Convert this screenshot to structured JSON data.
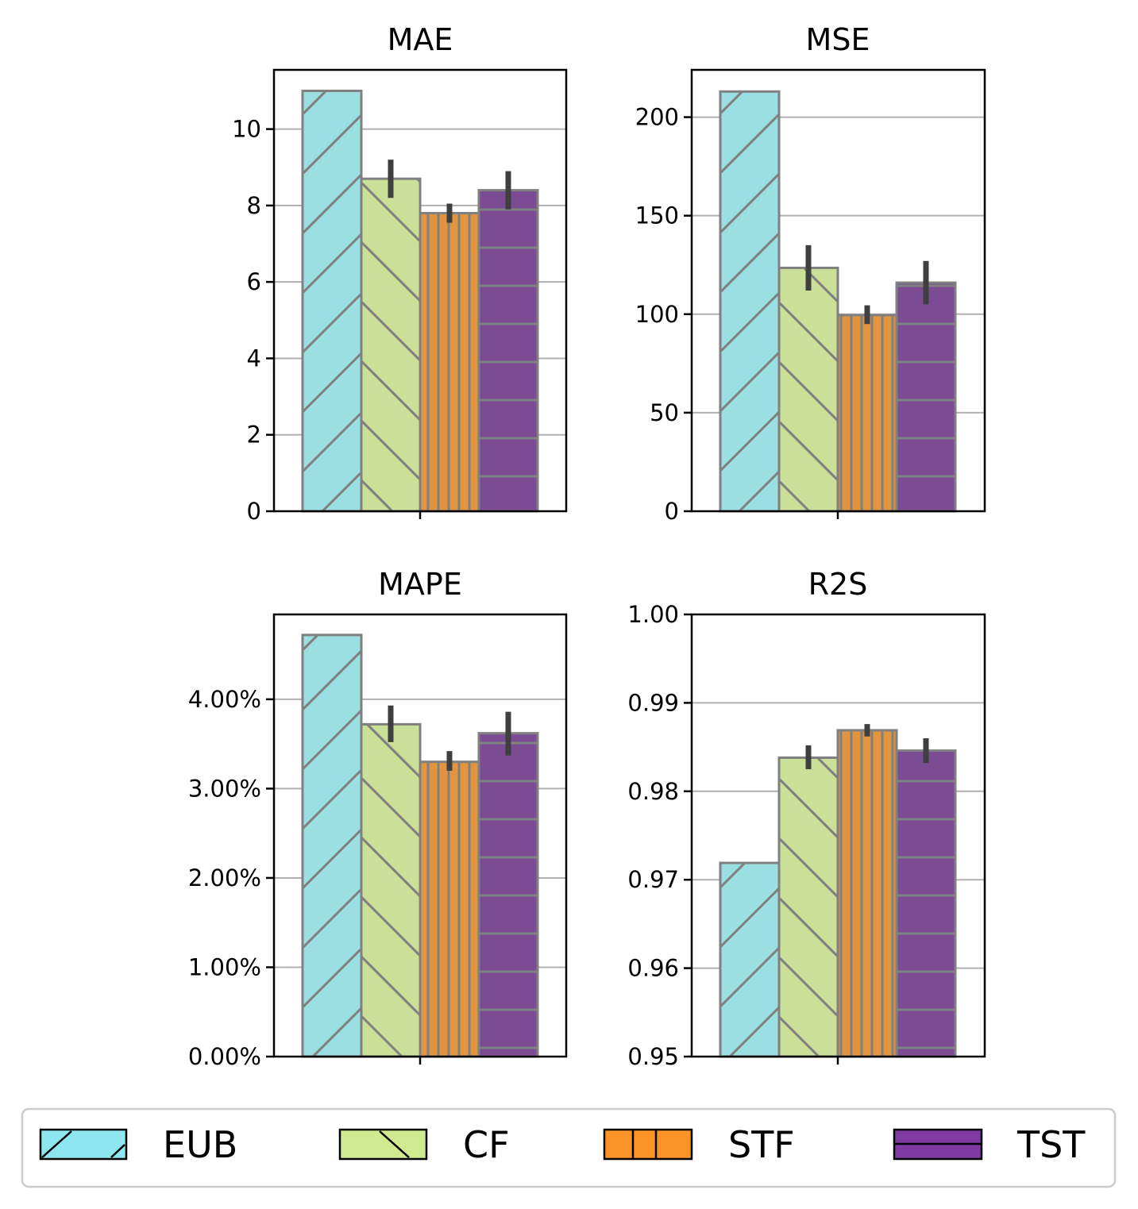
{
  "chart_data": [
    {
      "type": "bar",
      "title": "MAE",
      "series": [
        {
          "name": "EUB",
          "value": 11.0,
          "err": null
        },
        {
          "name": "CF",
          "value": 8.7,
          "err": [
            8.2,
            9.2
          ]
        },
        {
          "name": "STF",
          "value": 7.8,
          "err": [
            7.55,
            8.05
          ]
        },
        {
          "name": "TST",
          "value": 8.4,
          "err": [
            7.9,
            8.9
          ]
        }
      ],
      "ylim": [
        0,
        11.55
      ],
      "yticks": [
        0,
        2,
        4,
        6,
        8,
        10
      ],
      "ytick_labels": [
        "0",
        "2",
        "4",
        "6",
        "8",
        "10"
      ],
      "grid": true
    },
    {
      "type": "bar",
      "title": "MSE",
      "series": [
        {
          "name": "EUB",
          "value": 213,
          "err": null
        },
        {
          "name": "CF",
          "value": 123.5,
          "err": [
            112,
            135
          ]
        },
        {
          "name": "STF",
          "value": 99.5,
          "err": [
            95,
            104.5
          ]
        },
        {
          "name": "TST",
          "value": 116,
          "err": [
            105,
            127
          ]
        }
      ],
      "ylim": [
        0,
        224
      ],
      "yticks": [
        0,
        50,
        100,
        150,
        200
      ],
      "ytick_labels": [
        "0",
        "50",
        "100",
        "150",
        "200"
      ],
      "grid": true
    },
    {
      "type": "bar",
      "title": "MAPE",
      "series": [
        {
          "name": "EUB",
          "value": 4.72,
          "err": null
        },
        {
          "name": "CF",
          "value": 3.72,
          "err": [
            3.52,
            3.93
          ]
        },
        {
          "name": "STF",
          "value": 3.3,
          "err": [
            3.2,
            3.42
          ]
        },
        {
          "name": "TST",
          "value": 3.62,
          "err": [
            3.37,
            3.86
          ]
        }
      ],
      "ylim": [
        0,
        4.95
      ],
      "yticks": [
        0,
        1,
        2,
        3,
        4
      ],
      "ytick_labels": [
        "0.00%",
        "1.00%",
        "2.00%",
        "3.00%",
        "4.00%"
      ],
      "grid": true
    },
    {
      "type": "bar",
      "title": "R2S",
      "series": [
        {
          "name": "EUB",
          "value": 0.9719,
          "err": null
        },
        {
          "name": "CF",
          "value": 0.9838,
          "err": [
            0.9825,
            0.9852
          ]
        },
        {
          "name": "STF",
          "value": 0.9869,
          "err": [
            0.9862,
            0.9876
          ]
        },
        {
          "name": "TST",
          "value": 0.9846,
          "err": [
            0.9832,
            0.986
          ]
        }
      ],
      "ylim": [
        0.95,
        1.0
      ],
      "yticks": [
        0.95,
        0.96,
        0.97,
        0.98,
        0.99,
        1.0
      ],
      "ytick_labels": [
        "0.95",
        "0.96",
        "0.97",
        "0.98",
        "0.99",
        "1.00"
      ],
      "grid": true
    }
  ],
  "legend": {
    "position": "bottom",
    "items": [
      {
        "label": "EUB",
        "color": "#8ee6ee",
        "bar_color": "#9bdfe3",
        "hatch": "slash"
      },
      {
        "label": "CF",
        "color": "#d0ea8f",
        "bar_color": "#cadf97",
        "hatch": "backslash"
      },
      {
        "label": "STF",
        "color": "#fb9426",
        "bar_color": "#e2943f",
        "hatch": "vertical"
      },
      {
        "label": "TST",
        "color": "#7f3aa4",
        "bar_color": "#7b4b94",
        "hatch": "horizontal"
      }
    ]
  },
  "colors": {
    "bar_edge": "#808080",
    "error_bar": "#3f3f3f",
    "grid": "#b0b0b0",
    "legend_border": "#cccccc"
  }
}
